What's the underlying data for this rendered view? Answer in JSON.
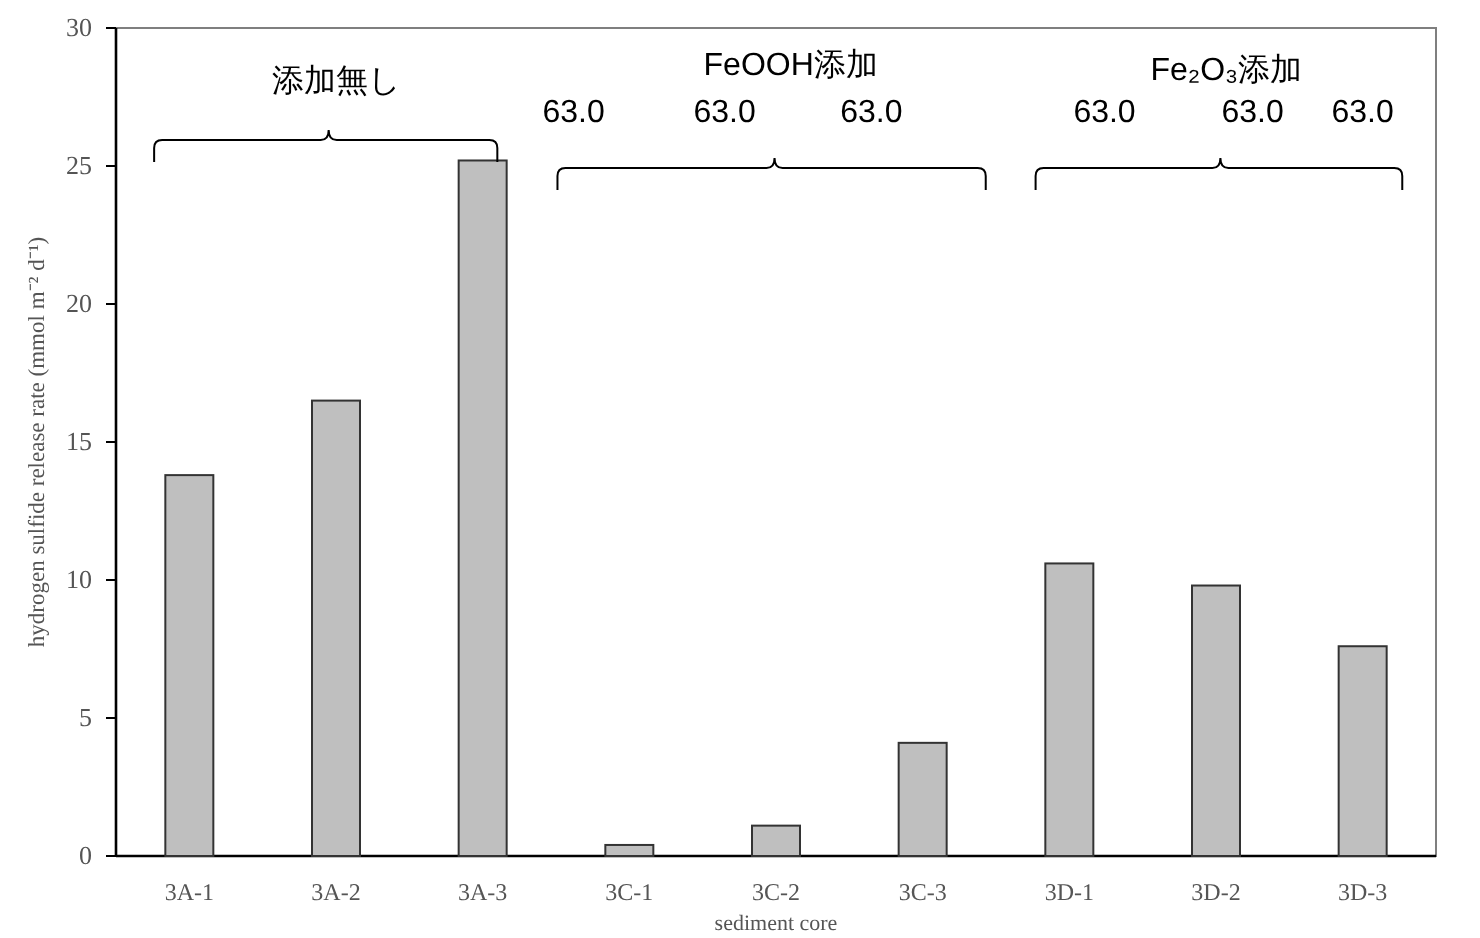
{
  "chart_data": {
    "type": "bar",
    "categories": [
      "3A-1",
      "3A-2",
      "3A-3",
      "3C-1",
      "3C-2",
      "3C-3",
      "3D-1",
      "3D-2",
      "3D-3"
    ],
    "values": [
      13.8,
      16.5,
      25.2,
      0.4,
      1.1,
      4.1,
      10.6,
      9.8,
      7.6
    ],
    "color": "#bfbfbf",
    "xlabel": "sediment core",
    "ylabel": "hydrogen sulfide release rate (mmol m⁻² d⁻¹)",
    "ylim": [
      0,
      30
    ],
    "yticks": [
      0,
      5,
      10,
      15,
      20,
      25,
      30
    ],
    "annotations": [
      "添加無し",
      "FeOOH添加",
      "63.0",
      "63.0",
      "63.0",
      "Fe₂O₃添加",
      "63.0",
      "63.0",
      "63.0"
    ]
  }
}
